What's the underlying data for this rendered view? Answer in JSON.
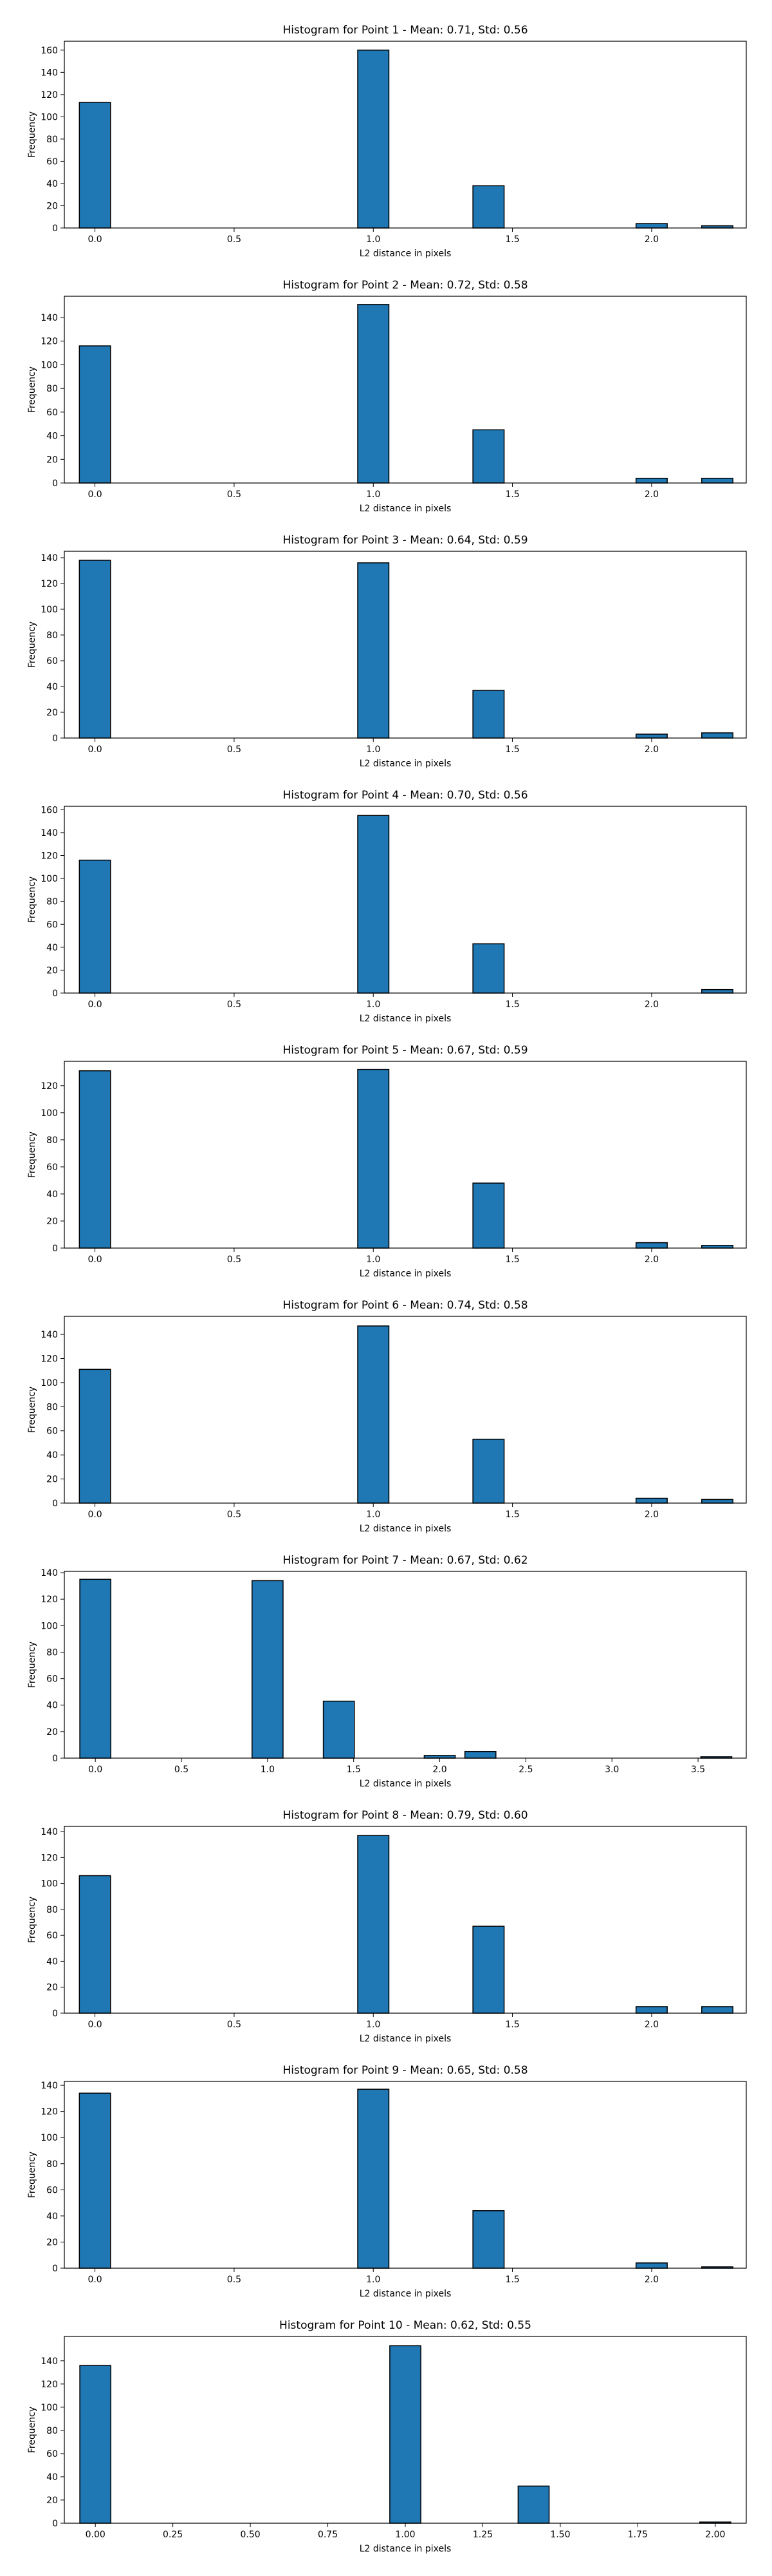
{
  "figure": {
    "style": {
      "bar_fill": "#1f77b4",
      "bar_edge": "#000000",
      "axes_edge": "#000000",
      "background": "#ffffff"
    }
  },
  "chart_data": [
    {
      "type": "bar",
      "title": "Histogram for Point 1 - Mean: 0.71, Std: 0.56",
      "xlabel": "L2 distance in pixels",
      "ylabel": "Frequency",
      "xlim": [
        -0.11,
        2.34
      ],
      "ylim": [
        0,
        168
      ],
      "xticks": [
        0.0,
        0.5,
        1.0,
        1.5,
        2.0
      ],
      "xtick_labels": [
        "0.0",
        "0.5",
        "1.0",
        "1.5",
        "2.0"
      ],
      "yticks": [
        0,
        20,
        40,
        60,
        80,
        100,
        120,
        140,
        160
      ],
      "bin_width": 0.112,
      "bins": [
        {
          "x": 0.0,
          "value": 113
        },
        {
          "x": 1.0,
          "value": 160
        },
        {
          "x": 1.414,
          "value": 38
        },
        {
          "x": 2.0,
          "value": 4
        },
        {
          "x": 2.236,
          "value": 2
        }
      ]
    },
    {
      "type": "bar",
      "title": "Histogram for Point 2 - Mean: 0.72, Std: 0.58",
      "xlabel": "L2 distance in pixels",
      "ylabel": "Frequency",
      "xlim": [
        -0.11,
        2.34
      ],
      "ylim": [
        0,
        158
      ],
      "xticks": [
        0.0,
        0.5,
        1.0,
        1.5,
        2.0
      ],
      "xtick_labels": [
        "0.0",
        "0.5",
        "1.0",
        "1.5",
        "2.0"
      ],
      "yticks": [
        0,
        20,
        40,
        60,
        80,
        100,
        120,
        140
      ],
      "bin_width": 0.112,
      "bins": [
        {
          "x": 0.0,
          "value": 116
        },
        {
          "x": 1.0,
          "value": 151
        },
        {
          "x": 1.414,
          "value": 45
        },
        {
          "x": 2.0,
          "value": 4
        },
        {
          "x": 2.236,
          "value": 4
        }
      ]
    },
    {
      "type": "bar",
      "title": "Histogram for Point 3 - Mean: 0.64, Std: 0.59",
      "xlabel": "L2 distance in pixels",
      "ylabel": "Frequency",
      "xlim": [
        -0.11,
        2.34
      ],
      "ylim": [
        0,
        145
      ],
      "xticks": [
        0.0,
        0.5,
        1.0,
        1.5,
        2.0
      ],
      "xtick_labels": [
        "0.0",
        "0.5",
        "1.0",
        "1.5",
        "2.0"
      ],
      "yticks": [
        0,
        20,
        40,
        60,
        80,
        100,
        120,
        140
      ],
      "bin_width": 0.112,
      "bins": [
        {
          "x": 0.0,
          "value": 138
        },
        {
          "x": 1.0,
          "value": 136
        },
        {
          "x": 1.414,
          "value": 37
        },
        {
          "x": 2.0,
          "value": 3
        },
        {
          "x": 2.236,
          "value": 4
        }
      ]
    },
    {
      "type": "bar",
      "title": "Histogram for Point 4 - Mean: 0.70, Std: 0.56",
      "xlabel": "L2 distance in pixels",
      "ylabel": "Frequency",
      "xlim": [
        -0.11,
        2.34
      ],
      "ylim": [
        0,
        163
      ],
      "xticks": [
        0.0,
        0.5,
        1.0,
        1.5,
        2.0
      ],
      "xtick_labels": [
        "0.0",
        "0.5",
        "1.0",
        "1.5",
        "2.0"
      ],
      "yticks": [
        0,
        20,
        40,
        60,
        80,
        100,
        120,
        140,
        160
      ],
      "bin_width": 0.112,
      "bins": [
        {
          "x": 0.0,
          "value": 116
        },
        {
          "x": 1.0,
          "value": 155
        },
        {
          "x": 1.414,
          "value": 43
        },
        {
          "x": 2.236,
          "value": 3
        }
      ]
    },
    {
      "type": "bar",
      "title": "Histogram for Point 5 - Mean: 0.67, Std: 0.59",
      "xlabel": "L2 distance in pixels",
      "ylabel": "Frequency",
      "xlim": [
        -0.11,
        2.34
      ],
      "ylim": [
        0,
        138
      ],
      "xticks": [
        0.0,
        0.5,
        1.0,
        1.5,
        2.0
      ],
      "xtick_labels": [
        "0.0",
        "0.5",
        "1.0",
        "1.5",
        "2.0"
      ],
      "yticks": [
        0,
        20,
        40,
        60,
        80,
        100,
        120
      ],
      "bin_width": 0.112,
      "bins": [
        {
          "x": 0.0,
          "value": 131
        },
        {
          "x": 1.0,
          "value": 132
        },
        {
          "x": 1.414,
          "value": 48
        },
        {
          "x": 2.0,
          "value": 4
        },
        {
          "x": 2.236,
          "value": 2
        }
      ]
    },
    {
      "type": "bar",
      "title": "Histogram for Point 6 - Mean: 0.74, Std: 0.58",
      "xlabel": "L2 distance in pixels",
      "ylabel": "Frequency",
      "xlim": [
        -0.11,
        2.34
      ],
      "ylim": [
        0,
        155
      ],
      "xticks": [
        0.0,
        0.5,
        1.0,
        1.5,
        2.0
      ],
      "xtick_labels": [
        "0.0",
        "0.5",
        "1.0",
        "1.5",
        "2.0"
      ],
      "yticks": [
        0,
        20,
        40,
        60,
        80,
        100,
        120,
        140
      ],
      "bin_width": 0.112,
      "bins": [
        {
          "x": 0.0,
          "value": 111
        },
        {
          "x": 1.0,
          "value": 147
        },
        {
          "x": 1.414,
          "value": 53
        },
        {
          "x": 2.0,
          "value": 4
        },
        {
          "x": 2.236,
          "value": 3
        }
      ]
    },
    {
      "type": "bar",
      "title": "Histogram for Point 7 - Mean: 0.67, Std: 0.62",
      "xlabel": "L2 distance in pixels",
      "ylabel": "Frequency",
      "xlim": [
        -0.18,
        3.78
      ],
      "ylim": [
        0,
        141
      ],
      "xticks": [
        0.0,
        0.5,
        1.0,
        1.5,
        2.0,
        2.5,
        3.0,
        3.5
      ],
      "xtick_labels": [
        "0.0",
        "0.5",
        "1.0",
        "1.5",
        "2.0",
        "2.5",
        "3.0",
        "3.5"
      ],
      "yticks": [
        0,
        20,
        40,
        60,
        80,
        100,
        120,
        140
      ],
      "bin_width": 0.18,
      "bins": [
        {
          "x": 0.0,
          "value": 135
        },
        {
          "x": 1.0,
          "value": 134
        },
        {
          "x": 1.414,
          "value": 43
        },
        {
          "x": 2.0,
          "value": 2
        },
        {
          "x": 2.236,
          "value": 5
        },
        {
          "x": 3.606,
          "value": 1
        }
      ]
    },
    {
      "type": "bar",
      "title": "Histogram for Point 8 - Mean: 0.79, Std: 0.60",
      "xlabel": "L2 distance in pixels",
      "ylabel": "Frequency",
      "xlim": [
        -0.11,
        2.34
      ],
      "ylim": [
        0,
        144
      ],
      "xticks": [
        0.0,
        0.5,
        1.0,
        1.5,
        2.0
      ],
      "xtick_labels": [
        "0.0",
        "0.5",
        "1.0",
        "1.5",
        "2.0"
      ],
      "yticks": [
        0,
        20,
        40,
        60,
        80,
        100,
        120,
        140
      ],
      "bin_width": 0.112,
      "bins": [
        {
          "x": 0.0,
          "value": 106
        },
        {
          "x": 1.0,
          "value": 137
        },
        {
          "x": 1.414,
          "value": 67
        },
        {
          "x": 2.0,
          "value": 5
        },
        {
          "x": 2.236,
          "value": 5
        }
      ]
    },
    {
      "type": "bar",
      "title": "Histogram for Point 9 - Mean: 0.65, Std: 0.58",
      "xlabel": "L2 distance in pixels",
      "ylabel": "Frequency",
      "xlim": [
        -0.11,
        2.34
      ],
      "ylim": [
        0,
        143
      ],
      "xticks": [
        0.0,
        0.5,
        1.0,
        1.5,
        2.0
      ],
      "xtick_labels": [
        "0.0",
        "0.5",
        "1.0",
        "1.5",
        "2.0"
      ],
      "yticks": [
        0,
        20,
        40,
        60,
        80,
        100,
        120,
        140
      ],
      "bin_width": 0.112,
      "bins": [
        {
          "x": 0.0,
          "value": 134
        },
        {
          "x": 1.0,
          "value": 137
        },
        {
          "x": 1.414,
          "value": 44
        },
        {
          "x": 2.0,
          "value": 4
        },
        {
          "x": 2.236,
          "value": 1
        }
      ]
    },
    {
      "type": "bar",
      "title": "Histogram for Point 10 - Mean: 0.62, Std: 0.55",
      "xlabel": "L2 distance in pixels",
      "ylabel": "Frequency",
      "xlim": [
        -0.1,
        2.1
      ],
      "ylim": [
        0,
        161
      ],
      "xticks": [
        0.0,
        0.25,
        0.5,
        0.75,
        1.0,
        1.25,
        1.5,
        1.75,
        2.0
      ],
      "xtick_labels": [
        "0.00",
        "0.25",
        "0.50",
        "0.75",
        "1.00",
        "1.25",
        "1.50",
        "1.75",
        "2.00"
      ],
      "yticks": [
        0,
        20,
        40,
        60,
        80,
        100,
        120,
        140
      ],
      "bin_width": 0.1,
      "bins": [
        {
          "x": 0.0,
          "value": 136
        },
        {
          "x": 1.0,
          "value": 153
        },
        {
          "x": 1.414,
          "value": 32
        },
        {
          "x": 2.0,
          "value": 1
        }
      ]
    }
  ]
}
